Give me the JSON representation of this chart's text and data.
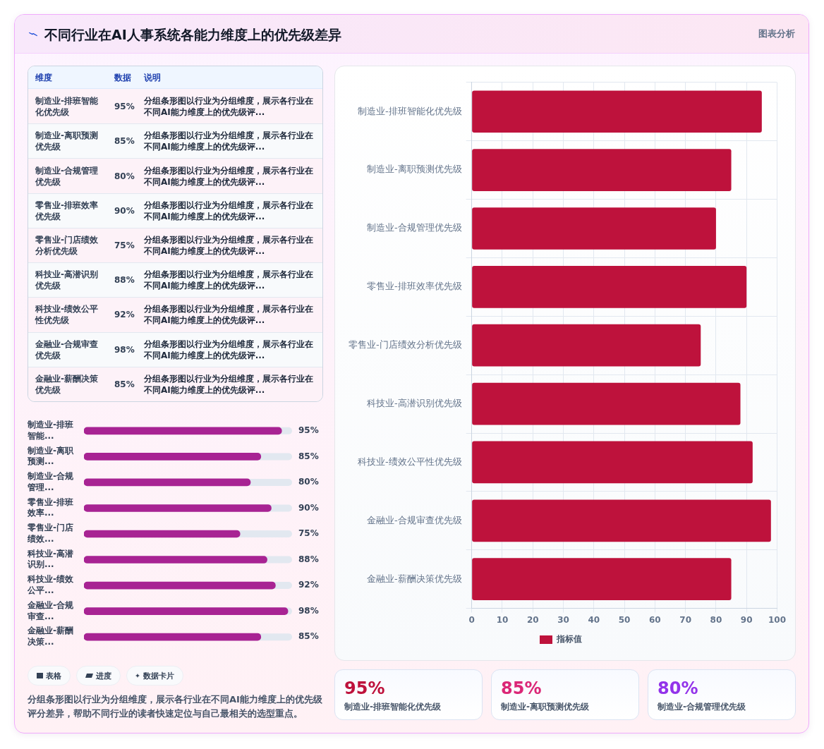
{
  "chart_data": [
    {
      "type": "other",
      "title": "不同行业在AI人事系统各能力维度上的优先级差异",
      "categories": [
        "制造业-排班智能化优先级",
        "制造业-离职预测优先级",
        "制造业-合规管理优先级",
        "零售业-排班效率优先级",
        "零售业-门店绩效分析优先级",
        "科技业-高潜识别优先级",
        "科技业-绩效公平性优先级",
        "金融业-合规审查优先级",
        "金融业-薪酬决策优先级"
      ],
      "value_labels": [
        "95%",
        "85%",
        "80%",
        "90%",
        "75%",
        "88%",
        "92%",
        "98%",
        "85%"
      ],
      "annotations": [
        "维度",
        "数据",
        "说明",
        "分组条形图以行业为分组维度，展示各行业在不同AI能力维度上的优先级评...",
        "分组条形图以行业为分组维度，展示各行业在不同AI能力维度上的优先级评...",
        "分组条形图以行业为分组维度，展示各行业在不同AI能力维度上的优先级评...",
        "分组条形图以行业为分组维度，展示各行业在不同AI能力维度上的优先级评...",
        "分组条形图以行业为分组维度，展示各行业在不同AI能力维度上的优先级评...",
        "分组条形图以行业为分组维度，展示各行业在不同AI能力维度上的优先级评...",
        "分组条形图以行业为分组维度，展示各行业在不同AI能力维度上的优先级评...",
        "分组条形图以行业为分组维度，展示各行业在不同AI能力维度上的优先级评...",
        "分组条形图以行业为分组维度，展示各行业在不同AI能力维度上的优先级评..."
      ]
    },
    {
      "type": "bar",
      "orientation": "horizontal",
      "categories": [
        "制造业-排班智能化优先级",
        "制造业-离职预测优先级",
        "制造业-合规管理优先级",
        "零售业-排班效率优先级",
        "零售业-门店绩效分析优先级",
        "科技业-高潜识别优先级",
        "科技业-绩效公平性优先级",
        "金融业-合规审查优先级",
        "金融业-薪酬决策优先级"
      ],
      "series": [
        {
          "name": "指标值",
          "color": "#be123c",
          "values": [
            95,
            85,
            80,
            90,
            75,
            88,
            92,
            98,
            85
          ]
        }
      ],
      "xlim": [
        0,
        100
      ],
      "xticks": [
        0,
        10,
        20,
        30,
        40,
        50,
        60,
        70,
        80,
        90,
        100
      ],
      "grid": true,
      "legend": "bottom",
      "annotations": [
        "图表分析"
      ]
    },
    {
      "type": "bar",
      "orientation": "horizontal",
      "categories": [
        "制造业-排班智能...",
        "制造业-离职预测...",
        "制造业-合规管理...",
        "零售业-排班效率...",
        "零售业-门店绩效...",
        "科技业-高潜识别...",
        "科技业-绩效公平...",
        "金融业-合规审查...",
        "金融业-薪酬决策..."
      ],
      "values": [
        95,
        85,
        80,
        90,
        75,
        88,
        92,
        98,
        85
      ],
      "value_labels": [
        "95%",
        "85%",
        "80%",
        "90%",
        "75%",
        "88%",
        "92%",
        "98%",
        "85%"
      ],
      "color": "#a82393",
      "xlim": [
        0,
        100
      ],
      "tick_labels": "y",
      "annotations": [
        "表格",
        "进度",
        "数据卡片",
        "分组条形图以行业为分组维度，展示各行业在不同AI能力维度上的优先级评分差异，帮助不同行业的读者快速定位与自己最相关的选型重点。"
      ]
    },
    {
      "type": "other",
      "categories": [
        "制造业-排班智能化优先级",
        "制造业-离职预测优先级",
        "制造业-合规管理优先级"
      ],
      "value_labels": [
        "95%",
        "85%",
        "80%"
      ]
    }
  ]
}
